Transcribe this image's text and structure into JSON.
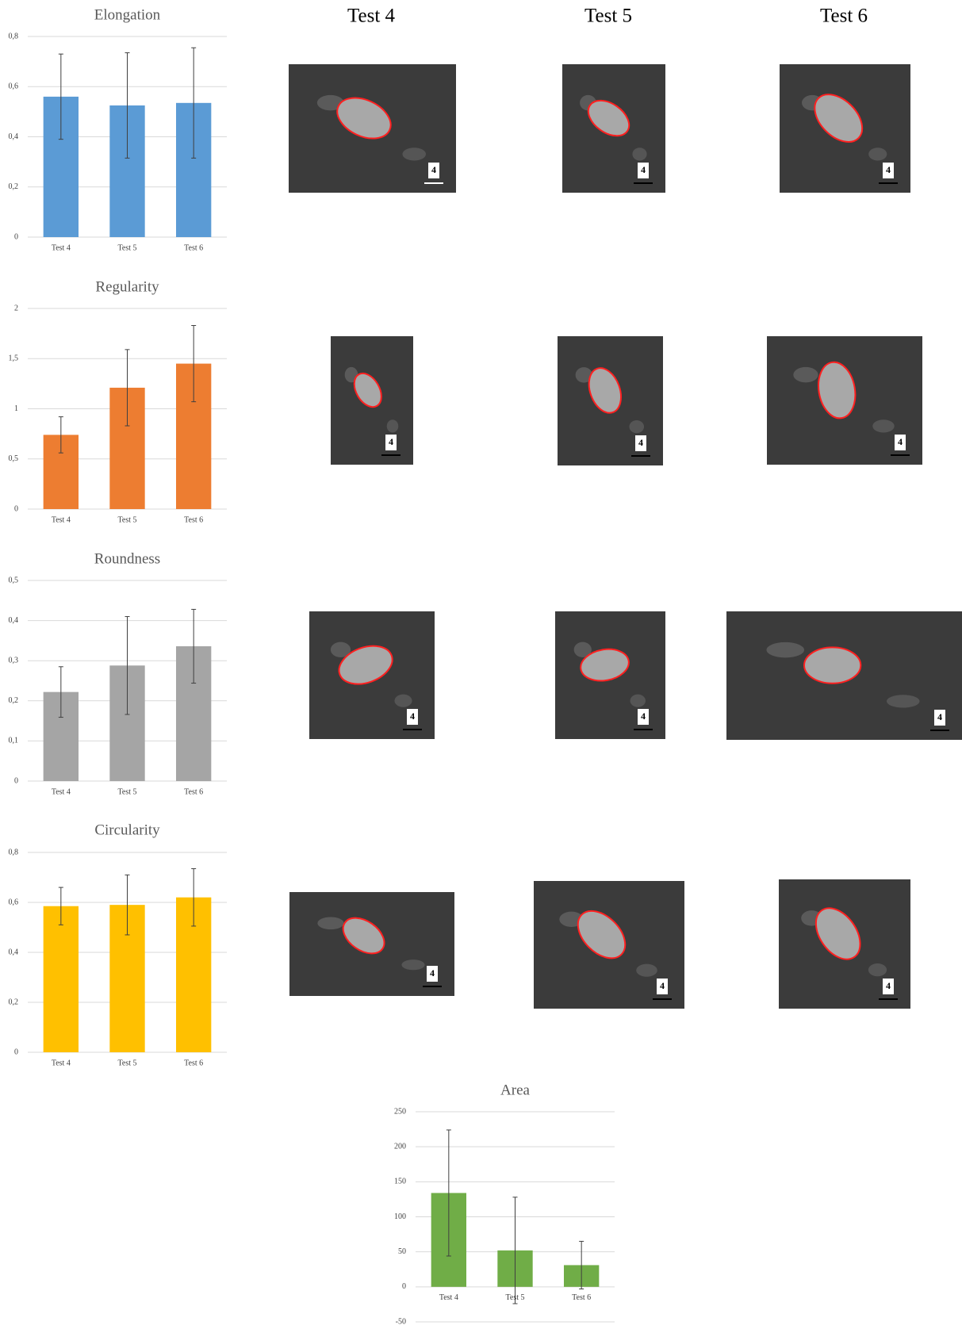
{
  "chart_data": [
    {
      "type": "bar",
      "title": "Elongation",
      "categories": [
        "Test 4",
        "Test 5",
        "Test 6"
      ],
      "values": [
        0.56,
        0.525,
        0.535
      ],
      "errors": [
        0.17,
        0.21,
        0.22
      ],
      "color": "#5b9bd5",
      "ylim": [
        0,
        0.8
      ],
      "yticks": [
        0,
        {
          "value": 0.2,
          "label": "0,2"
        },
        {
          "value": 0.4,
          "label": "0,4"
        },
        {
          "value": 0.6,
          "label": "0,6"
        },
        {
          "value": 0.8,
          "label": "0,8"
        }
      ],
      "grid": true
    },
    {
      "type": "bar",
      "title": "Regularity",
      "categories": [
        "Test 4",
        "Test 5",
        "Test 6"
      ],
      "values": [
        0.74,
        1.21,
        1.45
      ],
      "errors": [
        0.18,
        0.38,
        0.38
      ],
      "color": "#ed7d31",
      "ylim": [
        0,
        2
      ],
      "yticks": [
        0,
        {
          "value": 0.5,
          "label": "0,5"
        },
        1,
        {
          "value": 1.5,
          "label": "1,5"
        },
        2
      ],
      "grid": true
    },
    {
      "type": "bar",
      "title": "Roundness",
      "categories": [
        "Test 4",
        "Test 5",
        "Test 6"
      ],
      "values": [
        0.222,
        0.288,
        0.336
      ],
      "errors": [
        0.063,
        0.122,
        0.092
      ],
      "color": "#a5a5a5",
      "ylim": [
        0,
        0.5
      ],
      "yticks": [
        0,
        {
          "value": 0.1,
          "label": "0,1"
        },
        {
          "value": 0.2,
          "label": "0,2"
        },
        {
          "value": 0.3,
          "label": "0,3"
        },
        {
          "value": 0.4,
          "label": "0,4"
        },
        {
          "value": 0.5,
          "label": "0,5"
        }
      ],
      "grid": true
    },
    {
      "type": "bar",
      "title": "Circularity",
      "categories": [
        "Test 4",
        "Test 5",
        "Test 6"
      ],
      "values": [
        0.585,
        0.59,
        0.62
      ],
      "errors": [
        0.075,
        0.12,
        0.115
      ],
      "color": "#ffc000",
      "ylim": [
        0,
        0.8
      ],
      "yticks": [
        0,
        {
          "value": 0.2,
          "label": "0,2"
        },
        {
          "value": 0.4,
          "label": "0,4"
        },
        {
          "value": 0.6,
          "label": "0,6"
        },
        {
          "value": 0.8,
          "label": "0,8"
        }
      ],
      "grid": true
    },
    {
      "type": "bar",
      "title": "Area",
      "categories": [
        "Test 4",
        "Test 5",
        "Test 6"
      ],
      "values": [
        134,
        52,
        31
      ],
      "errors": [
        90,
        76,
        34
      ],
      "color": "#70ad47",
      "ylim": [
        -50,
        250
      ],
      "yticks": [
        -50,
        0,
        50,
        100,
        150,
        200,
        250
      ],
      "grid": true
    }
  ],
  "micrographs": {
    "columns": [
      "Test 4",
      "Test 5",
      "Test 6"
    ],
    "rows": [
      [
        {
          "scale_label": "4"
        },
        {
          "scale_label": "4"
        },
        {
          "scale_label": "4"
        }
      ],
      [
        {
          "scale_label": "4"
        },
        {
          "scale_label": "4"
        },
        {
          "scale_label": "4"
        }
      ],
      [
        {
          "scale_label": "4"
        },
        {
          "scale_label": "4"
        },
        {
          "scale_label": "4"
        }
      ],
      [
        {
          "scale_label": "4"
        },
        {
          "scale_label": "4"
        },
        {
          "scale_label": "4"
        }
      ]
    ]
  }
}
